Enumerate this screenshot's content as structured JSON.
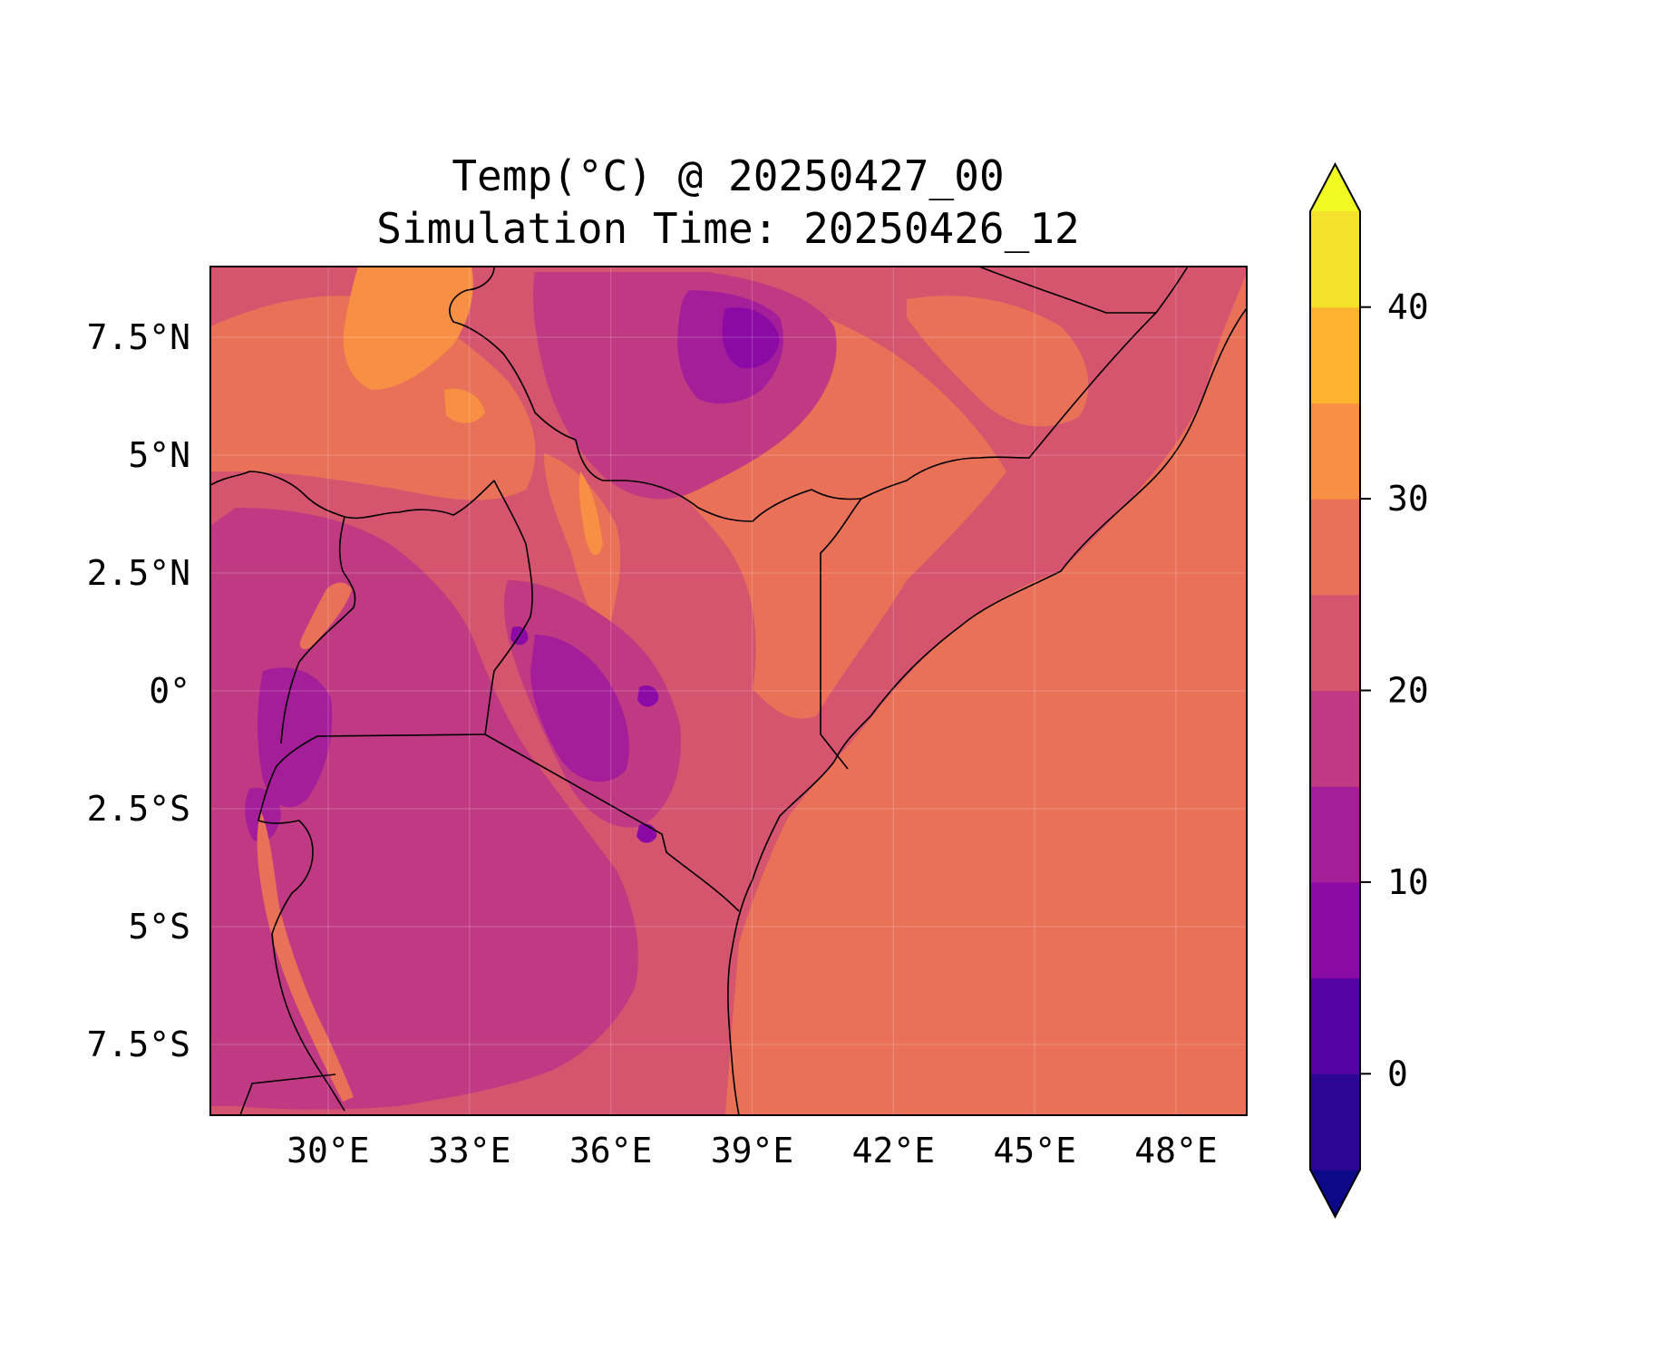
{
  "title": {
    "line1": "Temp(°C) @ 20250427_00",
    "line2": "Simulation Time: 20250426_12"
  },
  "map": {
    "lon_range": [
      27.5,
      49.5
    ],
    "lat_range": [
      -9,
      9
    ],
    "x_ticks": [
      {
        "value": 30,
        "label": "30°E"
      },
      {
        "value": 33,
        "label": "33°E"
      },
      {
        "value": 36,
        "label": "36°E"
      },
      {
        "value": 39,
        "label": "39°E"
      },
      {
        "value": 42,
        "label": "42°E"
      },
      {
        "value": 45,
        "label": "45°E"
      },
      {
        "value": 48,
        "label": "48°E"
      }
    ],
    "y_ticks": [
      {
        "value": 7.5,
        "label": "7.5°N"
      },
      {
        "value": 5,
        "label": "5°N"
      },
      {
        "value": 2.5,
        "label": "2.5°N"
      },
      {
        "value": 0,
        "label": "0°"
      },
      {
        "value": -2.5,
        "label": "2.5°S"
      },
      {
        "value": -5,
        "label": "5°S"
      },
      {
        "value": -7.5,
        "label": "7.5°S"
      }
    ],
    "gridlines": true
  },
  "colorbar": {
    "levels": [
      -5,
      0,
      5,
      10,
      15,
      20,
      25,
      30,
      35,
      40,
      45
    ],
    "extend": "both",
    "colors": [
      "#0d0887",
      "#2c0594",
      "#5302a3",
      "#8b0aa5",
      "#a41e9a",
      "#c03a83",
      "#d5546e",
      "#e97158",
      "#f79044",
      "#fdb32f",
      "#f4e12a",
      "#f0f921"
    ],
    "tick_values": [
      0,
      10,
      20,
      30,
      40
    ],
    "tick_labels": [
      "0",
      "10",
      "20",
      "30",
      "40"
    ]
  },
  "palette": {
    "sea": "#e97158",
    "warm_plain": "#e97158",
    "hot": "#f79044",
    "mild": "#d5546e",
    "cool": "#c03a83",
    "cold": "#a41e9a",
    "coldest": "#8b0aa5"
  }
}
